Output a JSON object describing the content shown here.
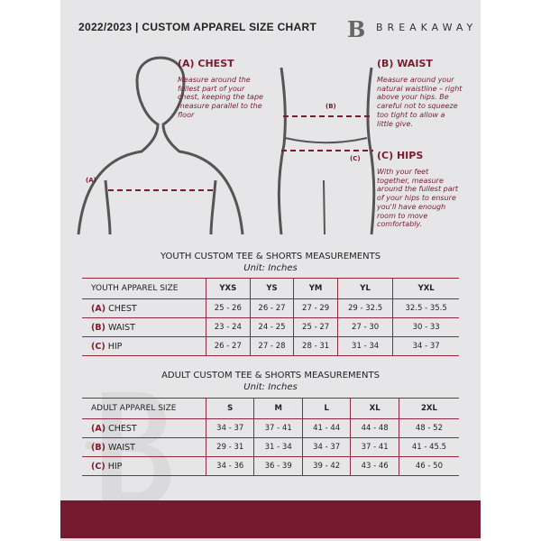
{
  "header": {
    "title": "2022/2023  |  CUSTOM APPAREL SIZE CHART",
    "brand": "BREAKAWAY",
    "logo_letter": "B"
  },
  "guides": {
    "chest": {
      "heading": "(A) CHEST",
      "text": "Measure around the fullest part of your chest, keeping the tape measure parallel to the floor",
      "marker": "(A)"
    },
    "waist": {
      "heading": "(B) WAIST",
      "text": "Measure around your natural waistline – right above your hips. Be careful not to squeeze too tight to allow a little give.",
      "marker": "(B)"
    },
    "hips": {
      "heading": "(C) HIPS",
      "text": "With your feet together, measure around the fullest part of your hips to ensure you'll have enough room to move comfortably.",
      "marker": "(C)"
    }
  },
  "youth": {
    "title": "YOUTH CUSTOM TEE & SHORTS MEASUREMENTS",
    "unit": "Unit: Inches",
    "header": "YOUTH APPAREL SIZE",
    "sizes": [
      "YXS",
      "YS",
      "YM",
      "YL",
      "YXL"
    ],
    "rows": [
      {
        "letter": "(A)",
        "label": "CHEST",
        "values": [
          "25 - 26",
          "26 - 27",
          "27 - 29",
          "29 - 32.5",
          "32.5 - 35.5"
        ]
      },
      {
        "letter": "(B)",
        "label": "WAIST",
        "values": [
          "23 - 24",
          "24 - 25",
          "25 - 27",
          "27 - 30",
          "30 - 33"
        ]
      },
      {
        "letter": "(C)",
        "label": "HIP",
        "values": [
          "26 - 27",
          "27 - 28",
          "28 - 31",
          "31 - 34",
          "34 - 37"
        ]
      }
    ]
  },
  "adult": {
    "title": "ADULT CUSTOM TEE & SHORTS MEASUREMENTS",
    "unit": "Unit: Inches",
    "header": "ADULT APPAREL SIZE",
    "sizes": [
      "S",
      "M",
      "L",
      "XL",
      "2XL"
    ],
    "rows": [
      {
        "letter": "(A)",
        "label": "CHEST",
        "values": [
          "34 - 37",
          "37 - 41",
          "41 - 44",
          "44 - 48",
          "48 - 52"
        ]
      },
      {
        "letter": "(B)",
        "label": "WAIST",
        "values": [
          "29 - 31",
          "31 - 34",
          "34 - 37",
          "37 - 41",
          "41 - 45.5"
        ]
      },
      {
        "letter": "(C)",
        "label": "HIP",
        "values": [
          "34 - 36",
          "36 - 39",
          "39 - 42",
          "43 - 46",
          "46 - 50"
        ]
      }
    ]
  },
  "colors": {
    "accent": "#7a1c2e",
    "panel": "#e6e6e8"
  }
}
